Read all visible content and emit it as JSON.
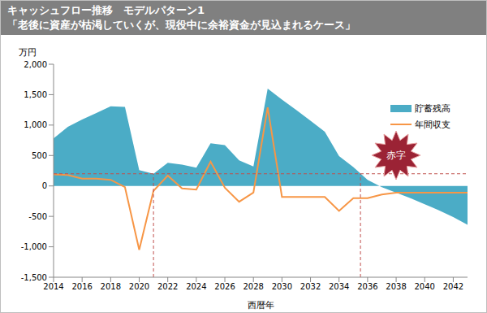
{
  "chart_data": {
    "type": "combo",
    "title": "キャッシュフロー推移　モデルパターン1",
    "subtitle": "「老後に資産が枯渇していくが、現役中に余裕資金が見込まれるケース」",
    "y_label": "万円",
    "x_label": "西暦年",
    "x": [
      2014,
      2015,
      2016,
      2017,
      2018,
      2019,
      2020,
      2021,
      2022,
      2023,
      2024,
      2025,
      2026,
      2027,
      2028,
      2029,
      2030,
      2031,
      2032,
      2033,
      2034,
      2035,
      2036,
      2037,
      2038,
      2039,
      2040,
      2041,
      2042,
      2043
    ],
    "series": [
      {
        "name": "貯蓄残高",
        "type": "area",
        "color": "#4bacc6",
        "values": [
          780,
          970,
          1090,
          1200,
          1310,
          1300,
          260,
          200,
          380,
          350,
          300,
          700,
          670,
          420,
          320,
          1600,
          1420,
          1250,
          1070,
          890,
          490,
          310,
          100,
          -20,
          -110,
          -200,
          -300,
          -400,
          -510,
          -640
        ]
      },
      {
        "name": "年間収支",
        "type": "line",
        "color": "#f79646",
        "values": [
          190,
          180,
          120,
          120,
          100,
          -20,
          -1050,
          -80,
          170,
          -40,
          -60,
          400,
          -30,
          -260,
          -110,
          1290,
          -180,
          -180,
          -180,
          -180,
          -410,
          -200,
          -200,
          -140,
          -110,
          -110,
          -110,
          -110,
          -110,
          -110
        ]
      }
    ],
    "xlim": [
      2014,
      2043
    ],
    "xticks": [
      2014,
      2016,
      2018,
      2020,
      2022,
      2024,
      2026,
      2028,
      2030,
      2032,
      2034,
      2036,
      2038,
      2040,
      2042
    ],
    "ylim": [
      -1500,
      2000
    ],
    "yticks": [
      {
        "value": -1500,
        "label": "-1,500"
      },
      {
        "value": -1000,
        "label": "-1,000"
      },
      -500,
      0,
      500,
      {
        "value": 1000,
        "label": "1,000"
      },
      {
        "value": 1500,
        "label": "1,500"
      },
      {
        "value": 2000,
        "label": "2,000"
      }
    ],
    "grid": false,
    "legend": "right",
    "reference_lines": {
      "x": [
        2021,
        2035.5
      ],
      "y": 200,
      "color": "#c0504d"
    },
    "annotations": [
      {
        "text": "赤字",
        "color": "#9b2335"
      }
    ]
  }
}
